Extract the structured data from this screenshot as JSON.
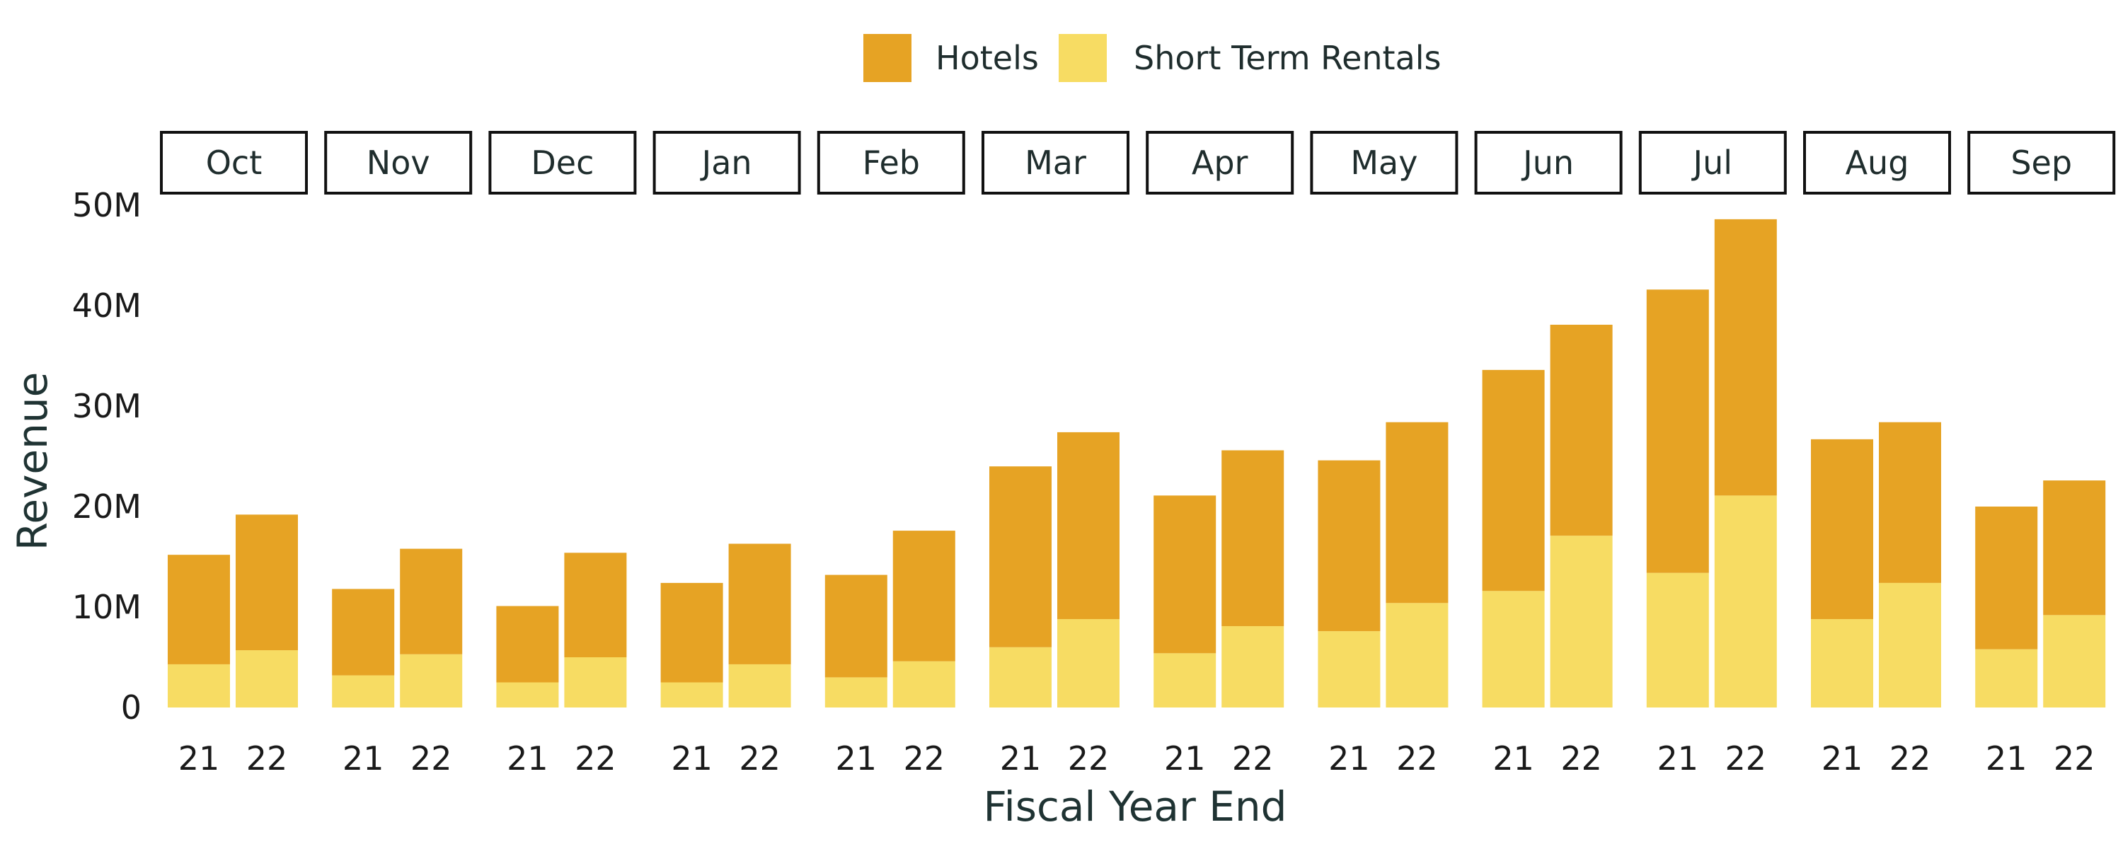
{
  "chart_data": {
    "type": "bar",
    "stacked": true,
    "facet_by": "month",
    "facets": [
      "Oct",
      "Nov",
      "Dec",
      "Jan",
      "Feb",
      "Mar",
      "Apr",
      "May",
      "Jun",
      "Jul",
      "Aug",
      "Sep"
    ],
    "categories": [
      "21",
      "22"
    ],
    "series": [
      {
        "name": "Hotels",
        "color": "#E6A324",
        "values": [
          [
            10.9,
            13.5
          ],
          [
            8.6,
            10.5
          ],
          [
            7.6,
            10.4
          ],
          [
            9.9,
            12.0
          ],
          [
            10.2,
            13.0
          ],
          [
            18.0,
            18.6
          ],
          [
            15.7,
            17.5
          ],
          [
            17.0,
            18.0
          ],
          [
            22.0,
            21.0
          ],
          [
            28.2,
            27.5
          ],
          [
            17.9,
            16.0
          ],
          [
            14.2,
            13.4
          ]
        ]
      },
      {
        "name": "Short Term Rentals",
        "color": "#F7DC63",
        "values": [
          [
            4.3,
            5.7
          ],
          [
            3.2,
            5.3
          ],
          [
            2.5,
            5.0
          ],
          [
            2.5,
            4.3
          ],
          [
            3.0,
            4.6
          ],
          [
            6.0,
            8.8
          ],
          [
            5.4,
            8.1
          ],
          [
            7.6,
            10.4
          ],
          [
            11.6,
            17.1
          ],
          [
            13.4,
            21.1
          ],
          [
            8.8,
            12.4
          ],
          [
            5.8,
            9.2
          ]
        ]
      }
    ],
    "xlabel": "Fiscal Year End",
    "ylabel": "Revenue",
    "ylim": [
      0,
      50
    ],
    "yticks": [
      0,
      10,
      20,
      30,
      40,
      50
    ],
    "ytick_labels": [
      "0",
      "10M",
      "20M",
      "30M",
      "40M",
      "50M"
    ],
    "legend_position": "top-center",
    "grid": false
  }
}
